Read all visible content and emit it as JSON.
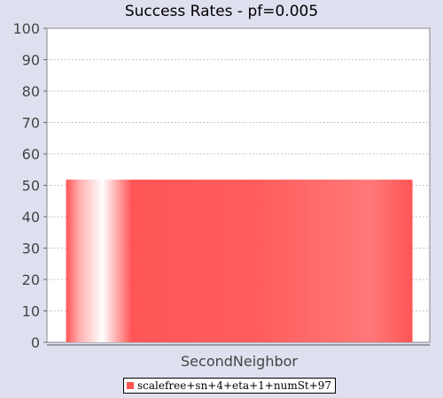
{
  "chart_data": {
    "type": "bar",
    "title": "Success Rates - pf=0.005",
    "categories": [
      "SecondNeighbor"
    ],
    "series": [
      {
        "name": "scalefree+sn+4+eta+1+numSt+97",
        "values": [
          51.8
        ],
        "color": "#ff5555"
      }
    ],
    "ylim": [
      0,
      100
    ],
    "yticks": [
      0,
      10,
      20,
      30,
      40,
      50,
      60,
      70,
      80,
      90,
      100
    ],
    "xlabel": "",
    "ylabel": "",
    "grid": true,
    "legend_position": "bottom"
  }
}
